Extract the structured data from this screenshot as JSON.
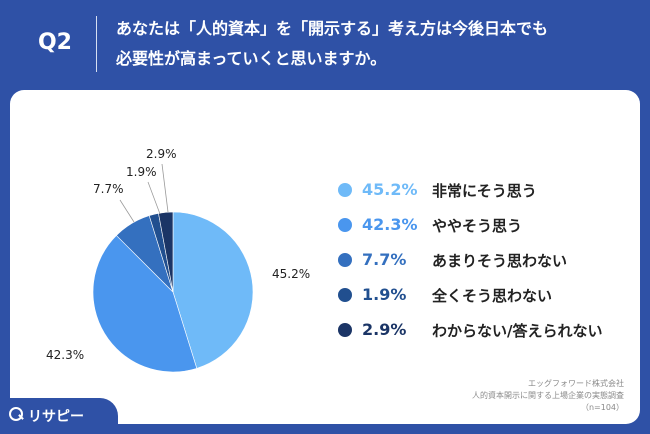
{
  "header": {
    "question_label": "Q2",
    "title_line1": "あなたは「人的資本」を「開示する」考え方は今後日本でも",
    "title_line2": "必要性が高まっていくと思いますか。"
  },
  "colors": {
    "header_bg": "#2f51a6",
    "card_bg": "#ffffff"
  },
  "chart_data": {
    "type": "pie",
    "title": "",
    "slices": [
      {
        "label": "非常にそう思う",
        "value": 45.2,
        "display": "45.2%",
        "color": "#6fbaf8"
      },
      {
        "label": "ややそう思う",
        "value": 42.3,
        "display": "42.3%",
        "color": "#4a96ee"
      },
      {
        "label": "あまりそう思わない",
        "value": 7.7,
        "display": "7.7%",
        "color": "#3470bf"
      },
      {
        "label": "全くそう思わない",
        "value": 1.9,
        "display": "1.9%",
        "color": "#214f8f"
      },
      {
        "label": "わからない/答えられない",
        "value": 2.9,
        "display": "2.9%",
        "color": "#1b3566"
      }
    ],
    "legend_position": "right"
  },
  "source": {
    "line1": "エッグフォワード株式会社",
    "line2": "人的資本開示に関する上場企業の実態調査",
    "line3": "（n=104）"
  },
  "brand": {
    "name": "リサピー",
    "icon": "magnifier-icon"
  }
}
